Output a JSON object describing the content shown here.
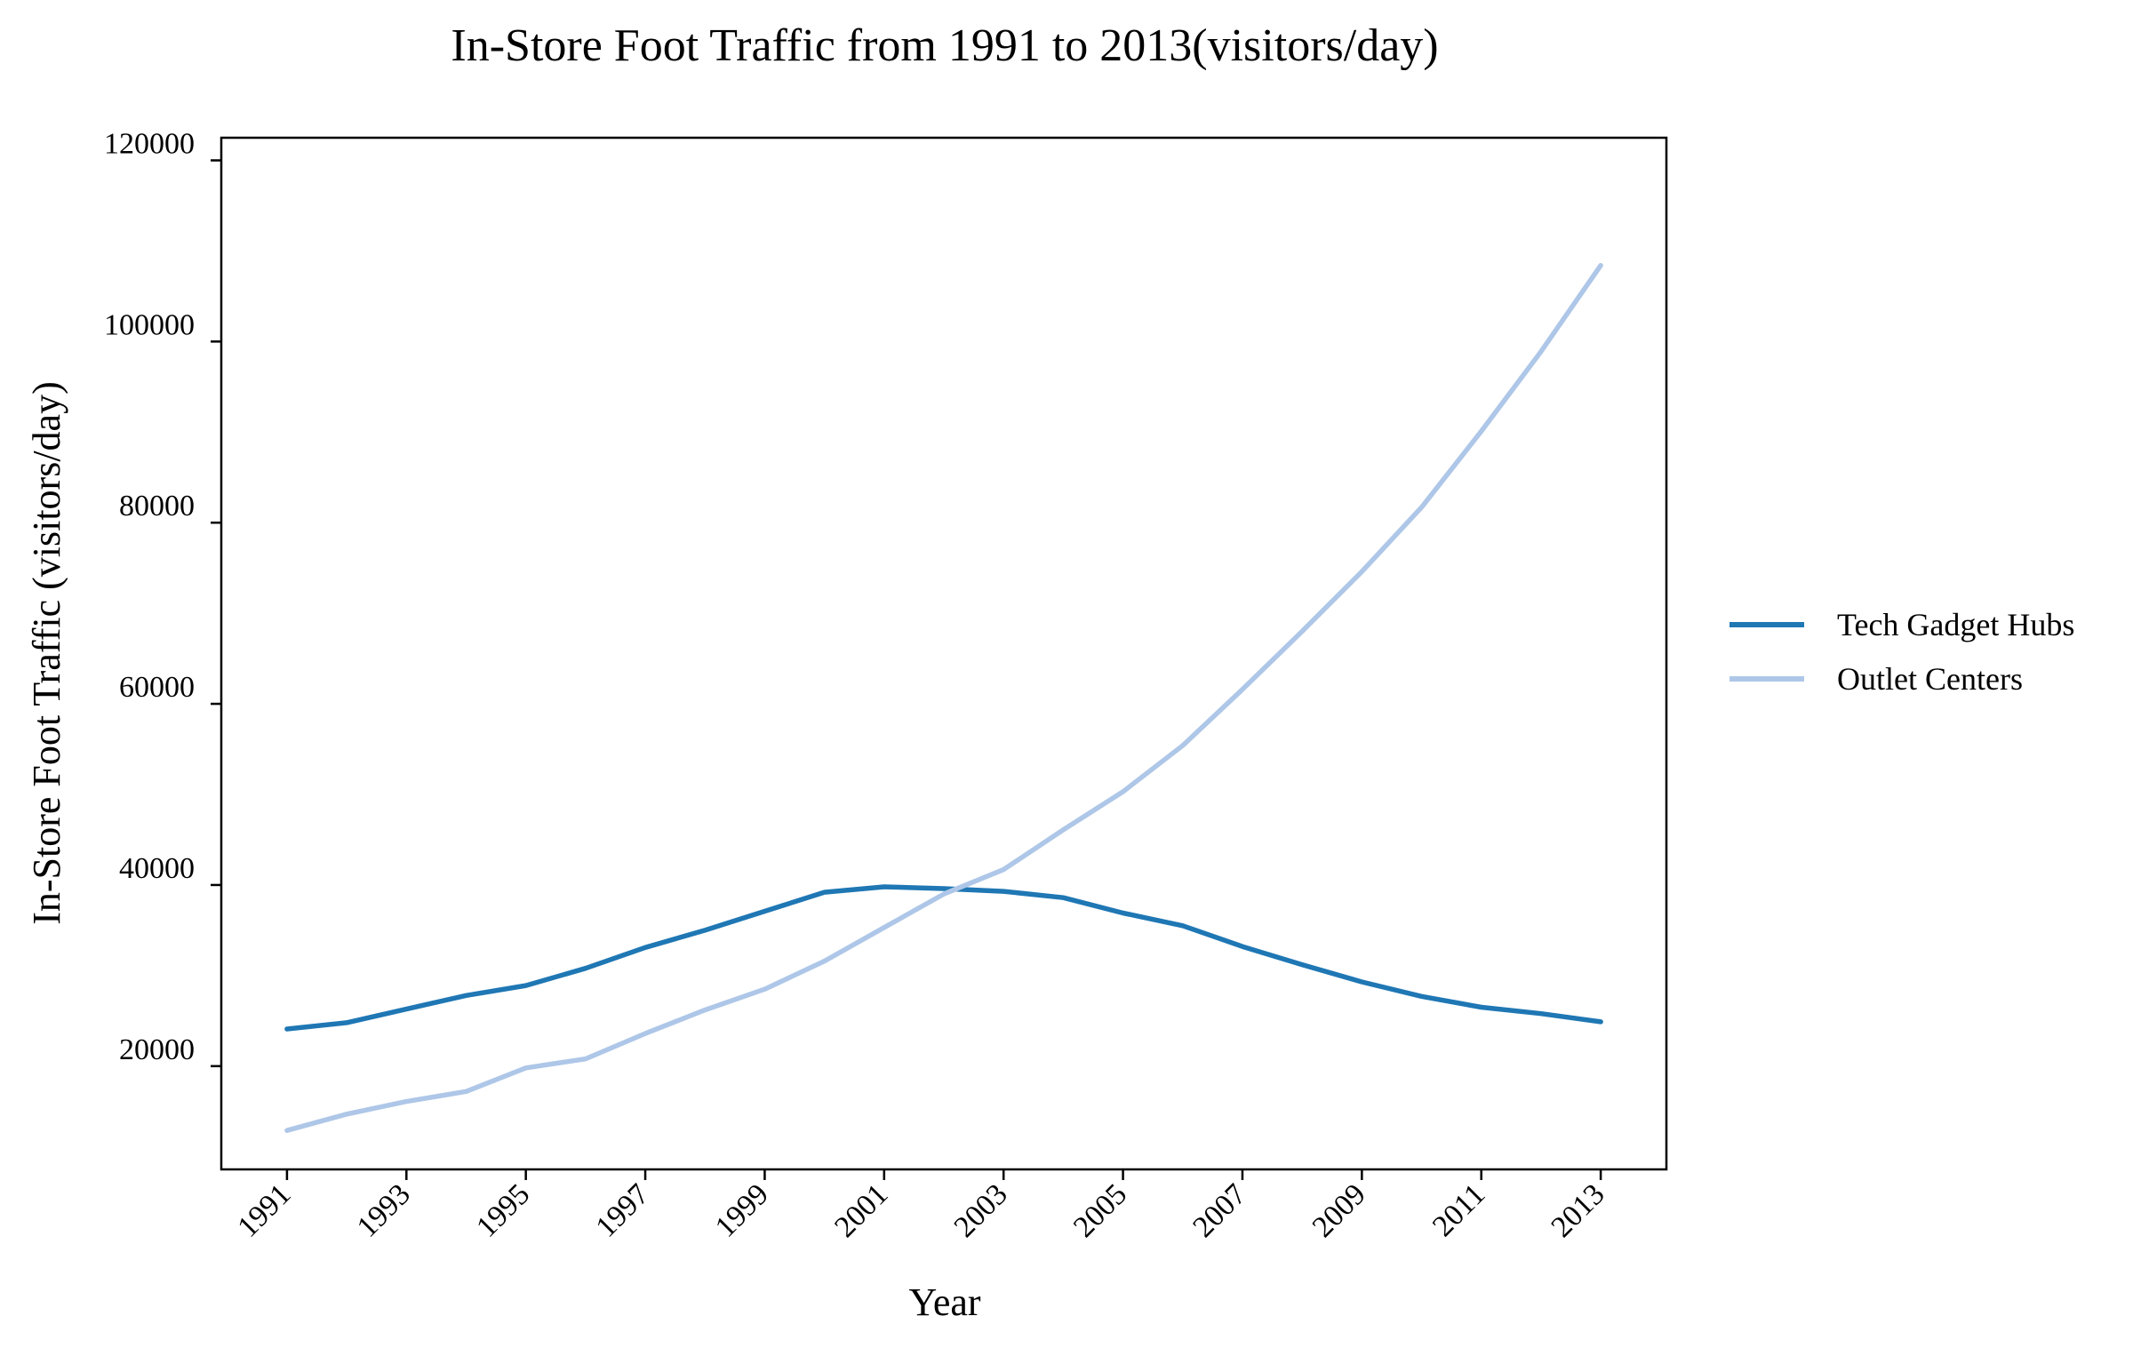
{
  "chart_data": {
    "type": "line",
    "title": "In-Store Foot Traffic from 1991 to 2013(visitors/day)",
    "xlabel": "Year",
    "ylabel": "In-Store Foot Traffic (visitors/day)",
    "x": [
      1991,
      1992,
      1993,
      1994,
      1995,
      1996,
      1997,
      1998,
      1999,
      2000,
      2001,
      2002,
      2003,
      2004,
      2005,
      2006,
      2007,
      2008,
      2009,
      2010,
      2011,
      2012,
      2013
    ],
    "x_ticks": [
      "1991",
      "1993",
      "1995",
      "1997",
      "1999",
      "2001",
      "2003",
      "2005",
      "2007",
      "2009",
      "2011",
      "2013"
    ],
    "y_ticks": [
      "20000",
      "40000",
      "60000",
      "80000",
      "100000",
      "120000"
    ],
    "xlim": [
      1989.9,
      2014.1
    ],
    "ylim": [
      8600,
      122500
    ],
    "grid": false,
    "legend_position": "right",
    "series": [
      {
        "name": "Tech Gadget Hubs",
        "color": "#1f77b4",
        "values": [
          24100,
          24800,
          26300,
          27800,
          28900,
          30800,
          33100,
          35000,
          37100,
          39200,
          39800,
          39600,
          39300,
          38600,
          36900,
          35500,
          33200,
          31200,
          29300,
          27700,
          26500,
          25800,
          24900
        ]
      },
      {
        "name": "Outlet Centers",
        "color": "#aec7e8",
        "values": [
          12900,
          14700,
          16100,
          17200,
          19800,
          20800,
          23600,
          26200,
          28500,
          31600,
          35300,
          39000,
          41700,
          46100,
          50300,
          55400,
          61600,
          68000,
          74600,
          81700,
          90100,
          98900,
          108400
        ]
      }
    ]
  }
}
